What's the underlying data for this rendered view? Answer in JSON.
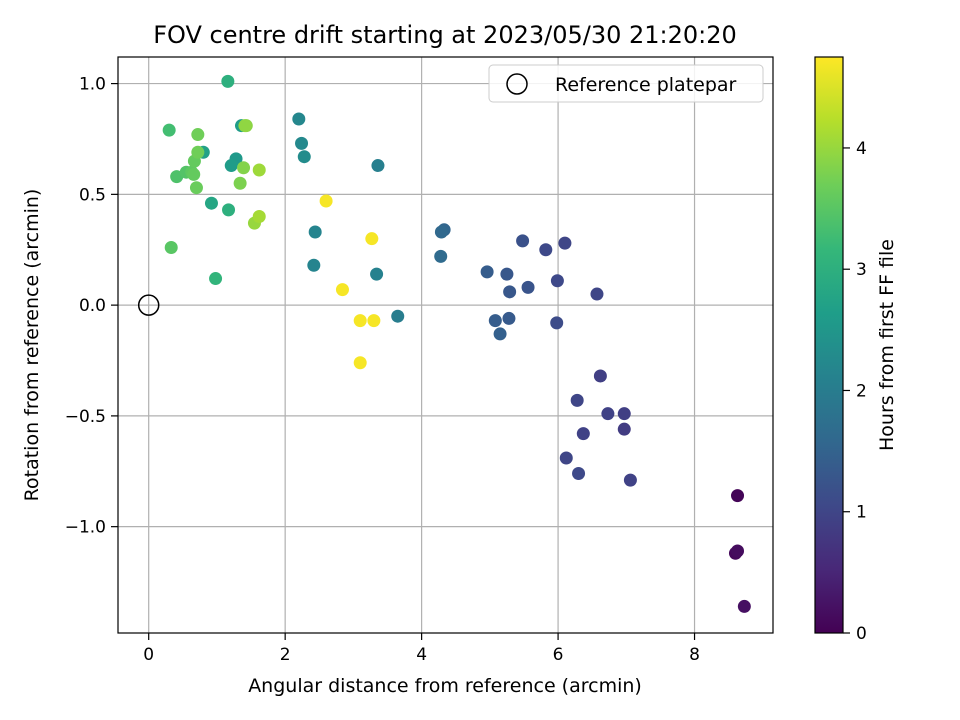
{
  "chart_data": {
    "type": "scatter",
    "title": "FOV centre drift starting at 2023/05/30 21:20:20",
    "xlabel": "Angular distance from reference (arcmin)",
    "ylabel": "Rotation from reference (arcmin)",
    "xlim": [
      -0.45,
      9.15
    ],
    "ylim": [
      -1.48,
      1.12
    ],
    "xticks": [
      0,
      2,
      4,
      6,
      8
    ],
    "xtick_labels": [
      "0",
      "2",
      "4",
      "6",
      "8"
    ],
    "yticks": [
      -1.0,
      -0.5,
      0.0,
      0.5,
      1.0
    ],
    "ytick_labels": [
      "−1.0",
      "−0.5",
      "0.0",
      "0.5",
      "1.0"
    ],
    "grid": true,
    "legend": {
      "position": "top-right",
      "entries": [
        {
          "label": "Reference platepar",
          "marker": "open-circle",
          "color": "#000000"
        }
      ]
    },
    "reference_point": {
      "x": 0,
      "y": 0
    },
    "colorbar": {
      "label": "Hours from first FF file",
      "min": 0,
      "max": 4.75,
      "ticks": [
        0,
        1,
        2,
        3,
        4
      ],
      "tick_labels": [
        "0",
        "1",
        "2",
        "3",
        "4"
      ],
      "colormap": "viridis",
      "stops": [
        "#440154",
        "#482878",
        "#3e4989",
        "#31688e",
        "#26828e",
        "#1f9e89",
        "#35b779",
        "#6ece58",
        "#b5de2b",
        "#fde725"
      ]
    },
    "points": [
      {
        "x": 8.63,
        "y": -0.86,
        "t": 0.05
      },
      {
        "x": 8.6,
        "y": -1.12,
        "t": 0.1
      },
      {
        "x": 8.63,
        "y": -1.11,
        "t": 0.15
      },
      {
        "x": 8.73,
        "y": -1.36,
        "t": 0.2
      },
      {
        "x": 7.06,
        "y": -0.79,
        "t": 0.95
      },
      {
        "x": 6.97,
        "y": -0.49,
        "t": 0.9
      },
      {
        "x": 6.97,
        "y": -0.56,
        "t": 0.85
      },
      {
        "x": 6.73,
        "y": -0.49,
        "t": 0.95
      },
      {
        "x": 6.62,
        "y": -0.32,
        "t": 0.9
      },
      {
        "x": 6.37,
        "y": -0.58,
        "t": 0.95
      },
      {
        "x": 6.28,
        "y": -0.43,
        "t": 1.0
      },
      {
        "x": 6.3,
        "y": -0.76,
        "t": 1.05
      },
      {
        "x": 6.12,
        "y": -0.69,
        "t": 1.0
      },
      {
        "x": 6.57,
        "y": 0.05,
        "t": 1.0
      },
      {
        "x": 6.1,
        "y": 0.28,
        "t": 1.0
      },
      {
        "x": 5.82,
        "y": 0.25,
        "t": 1.05
      },
      {
        "x": 5.99,
        "y": 0.11,
        "t": 1.05
      },
      {
        "x": 5.98,
        "y": -0.08,
        "t": 1.1
      },
      {
        "x": 5.48,
        "y": 0.29,
        "t": 1.2
      },
      {
        "x": 5.56,
        "y": 0.08,
        "t": 1.25
      },
      {
        "x": 5.25,
        "y": 0.14,
        "t": 1.3
      },
      {
        "x": 5.29,
        "y": 0.06,
        "t": 1.3
      },
      {
        "x": 5.28,
        "y": -0.06,
        "t": 1.35
      },
      {
        "x": 4.96,
        "y": 0.15,
        "t": 1.4
      },
      {
        "x": 5.08,
        "y": -0.07,
        "t": 1.4
      },
      {
        "x": 5.15,
        "y": -0.13,
        "t": 1.45
      },
      {
        "x": 4.33,
        "y": 0.34,
        "t": 1.55
      },
      {
        "x": 4.29,
        "y": 0.33,
        "t": 1.6
      },
      {
        "x": 4.28,
        "y": 0.22,
        "t": 1.65
      },
      {
        "x": 3.65,
        "y": -0.05,
        "t": 2.0
      },
      {
        "x": 3.36,
        "y": 0.63,
        "t": 2.05
      },
      {
        "x": 3.34,
        "y": 0.14,
        "t": 2.1
      },
      {
        "x": 2.44,
        "y": 0.33,
        "t": 2.15
      },
      {
        "x": 2.42,
        "y": 0.18,
        "t": 2.15
      },
      {
        "x": 2.2,
        "y": 0.84,
        "t": 2.2
      },
      {
        "x": 2.24,
        "y": 0.73,
        "t": 2.25
      },
      {
        "x": 2.28,
        "y": 0.67,
        "t": 2.3
      },
      {
        "x": 1.36,
        "y": 0.81,
        "t": 2.6
      },
      {
        "x": 1.28,
        "y": 0.66,
        "t": 2.55
      },
      {
        "x": 1.21,
        "y": 0.63,
        "t": 2.6
      },
      {
        "x": 0.8,
        "y": 0.69,
        "t": 2.7
      },
      {
        "x": 0.92,
        "y": 0.46,
        "t": 2.8
      },
      {
        "x": 1.16,
        "y": 1.01,
        "t": 3.0
      },
      {
        "x": 1.17,
        "y": 0.43,
        "t": 3.0
      },
      {
        "x": 0.98,
        "y": 0.12,
        "t": 3.1
      },
      {
        "x": 0.3,
        "y": 0.79,
        "t": 3.3
      },
      {
        "x": 0.41,
        "y": 0.58,
        "t": 3.4
      },
      {
        "x": 0.55,
        "y": 0.6,
        "t": 3.45
      },
      {
        "x": 0.33,
        "y": 0.26,
        "t": 3.5
      },
      {
        "x": 0.63,
        "y": 0.6,
        "t": 3.55
      },
      {
        "x": 0.66,
        "y": 0.59,
        "t": 3.6
      },
      {
        "x": 0.67,
        "y": 0.65,
        "t": 3.6
      },
      {
        "x": 0.7,
        "y": 0.53,
        "t": 3.65
      },
      {
        "x": 0.72,
        "y": 0.69,
        "t": 3.7
      },
      {
        "x": 0.72,
        "y": 0.77,
        "t": 3.7
      },
      {
        "x": 1.34,
        "y": 0.55,
        "t": 3.8
      },
      {
        "x": 1.39,
        "y": 0.62,
        "t": 3.85
      },
      {
        "x": 1.43,
        "y": 0.81,
        "t": 3.9
      },
      {
        "x": 1.41,
        "y": 0.81,
        "t": 3.95
      },
      {
        "x": 1.55,
        "y": 0.37,
        "t": 4.0
      },
      {
        "x": 1.62,
        "y": 0.61,
        "t": 4.05
      },
      {
        "x": 1.62,
        "y": 0.4,
        "t": 4.1
      },
      {
        "x": 2.6,
        "y": 0.47,
        "t": 4.7
      },
      {
        "x": 2.84,
        "y": 0.07,
        "t": 4.7
      },
      {
        "x": 3.27,
        "y": 0.3,
        "t": 4.7
      },
      {
        "x": 3.1,
        "y": -0.07,
        "t": 4.7
      },
      {
        "x": 3.3,
        "y": -0.07,
        "t": 4.7
      },
      {
        "x": 3.1,
        "y": -0.26,
        "t": 4.7
      }
    ]
  }
}
